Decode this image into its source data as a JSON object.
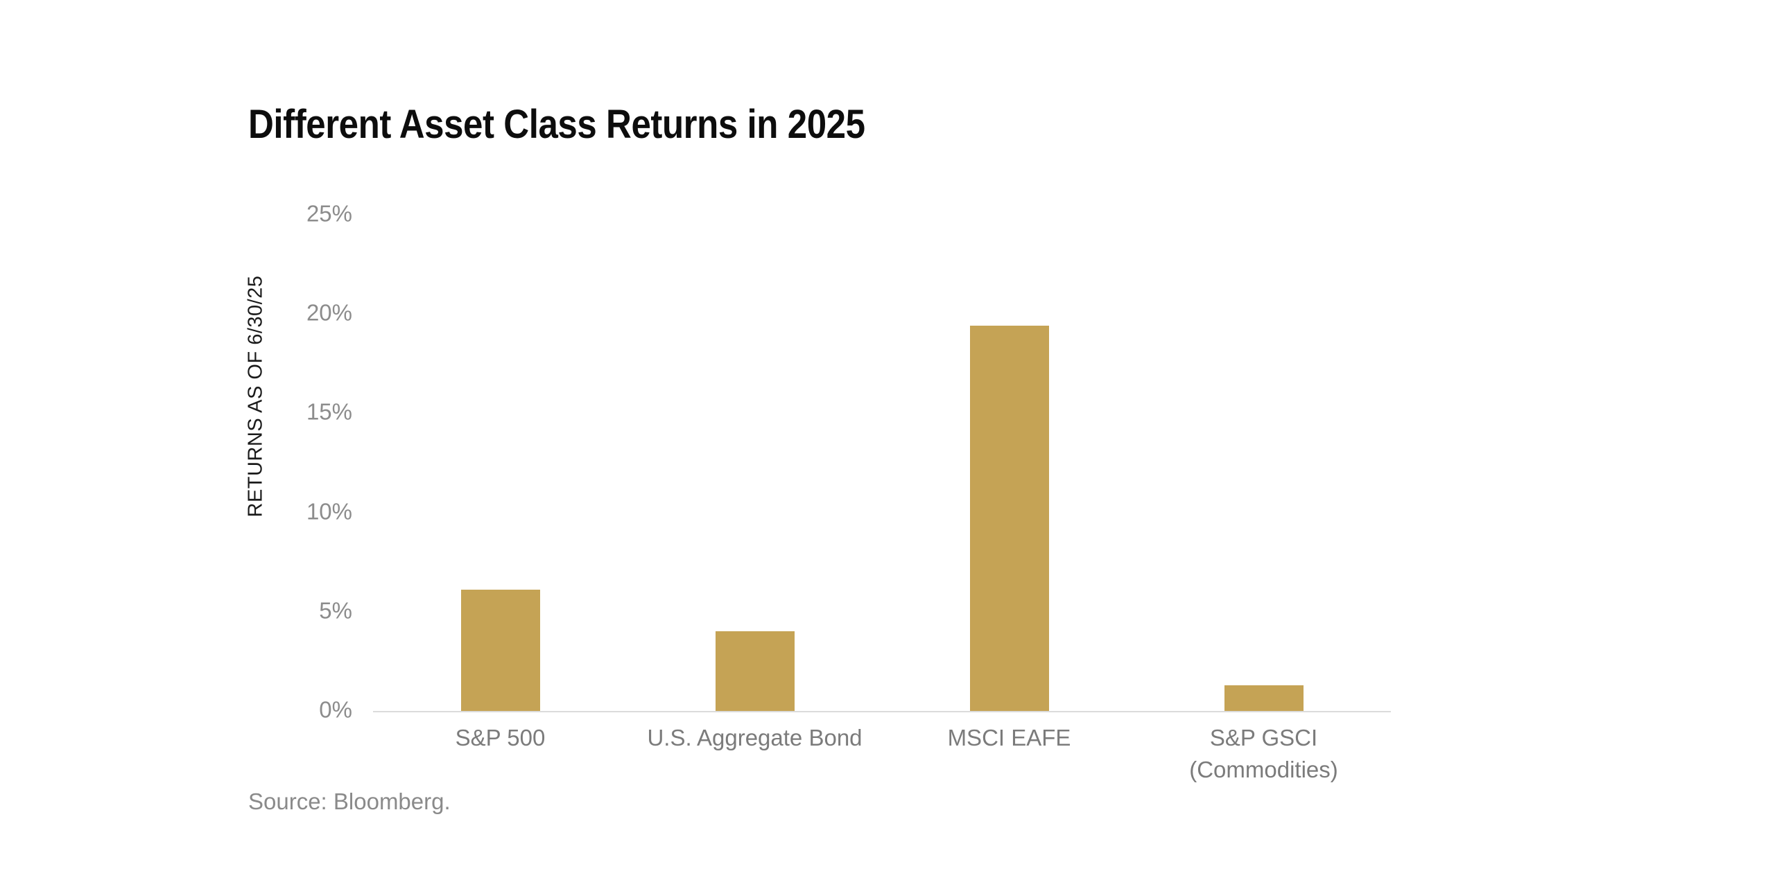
{
  "chart_data": {
    "type": "bar",
    "title": "Different Asset Class Returns in 2025",
    "categories": [
      "S&P 500",
      "U.S. Aggregate Bond",
      "MSCI EAFE",
      "S&P GSCI\n(Commodities)"
    ],
    "values": [
      6.1,
      4.0,
      19.4,
      1.3
    ],
    "xlabel": "",
    "ylabel": "RETURNS AS OF 6/30/25",
    "ylim": [
      0,
      25
    ],
    "ytick_step": 5,
    "ytick_labels": [
      "0%",
      "5%",
      "10%",
      "15%",
      "20%",
      "25%"
    ],
    "grid": false,
    "legend_position": "none",
    "bar_color": "#C5A355"
  },
  "colors": {
    "bar": "#C5A355",
    "axis_line": "#DBDBDB",
    "tick_text": "#8C8C8C",
    "category_text": "#7B7B7B",
    "title_text": "#0D0D0D",
    "source_text": "#8A8A8A",
    "background": "#FFFFFF"
  },
  "footer": {
    "source": "Source: Bloomberg."
  }
}
